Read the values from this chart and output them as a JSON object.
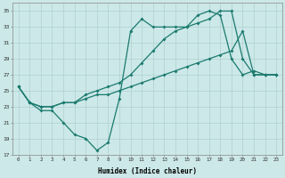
{
  "xlabel": "Humidex (Indice chaleur)",
  "ylabel": "",
  "background_color": "#cce8e8",
  "grid_color": "#b0d0d0",
  "line_color": "#1a7a6e",
  "xlim": [
    -0.5,
    23.5
  ],
  "ylim": [
    17,
    36
  ],
  "yticks": [
    17,
    19,
    21,
    23,
    25,
    27,
    29,
    31,
    33,
    35
  ],
  "xticks": [
    0,
    1,
    2,
    3,
    4,
    5,
    6,
    7,
    8,
    9,
    10,
    11,
    12,
    13,
    14,
    15,
    16,
    17,
    18,
    19,
    20,
    21,
    22,
    23
  ],
  "line1_x": [
    0,
    1,
    2,
    3,
    4,
    5,
    6,
    7,
    8,
    9,
    10,
    11,
    12,
    13,
    14,
    15,
    16,
    17,
    18,
    19,
    20,
    21,
    22,
    23
  ],
  "line1_y": [
    25.5,
    23.5,
    22.5,
    22.5,
    21.0,
    19.5,
    19.0,
    17.5,
    18.5,
    24.0,
    32.5,
    34.0,
    33.0,
    33.0,
    33.0,
    33.0,
    34.5,
    35.0,
    34.5,
    29.0,
    27.0,
    27.5,
    27.0,
    27.0
  ],
  "line2_x": [
    0,
    1,
    2,
    3,
    4,
    5,
    6,
    7,
    8,
    9,
    10,
    11,
    12,
    13,
    14,
    15,
    16,
    17,
    18,
    19,
    20,
    21,
    22,
    23
  ],
  "line2_y": [
    25.5,
    23.5,
    23.0,
    23.0,
    23.5,
    23.5,
    24.0,
    24.5,
    24.5,
    25.0,
    25.5,
    26.0,
    26.5,
    27.0,
    27.5,
    28.0,
    28.5,
    29.0,
    29.5,
    30.0,
    32.5,
    27.0,
    27.0,
    27.0
  ],
  "line3_x": [
    0,
    1,
    2,
    3,
    4,
    5,
    6,
    7,
    8,
    9,
    10,
    11,
    12,
    13,
    14,
    15,
    16,
    17,
    18,
    19,
    20,
    21,
    22,
    23
  ],
  "line3_y": [
    25.5,
    23.5,
    23.0,
    23.0,
    23.5,
    23.5,
    24.5,
    25.0,
    25.5,
    26.0,
    27.0,
    28.5,
    30.0,
    31.5,
    32.5,
    33.0,
    33.5,
    34.0,
    35.0,
    35.0,
    29.0,
    27.0,
    27.0,
    27.0
  ]
}
